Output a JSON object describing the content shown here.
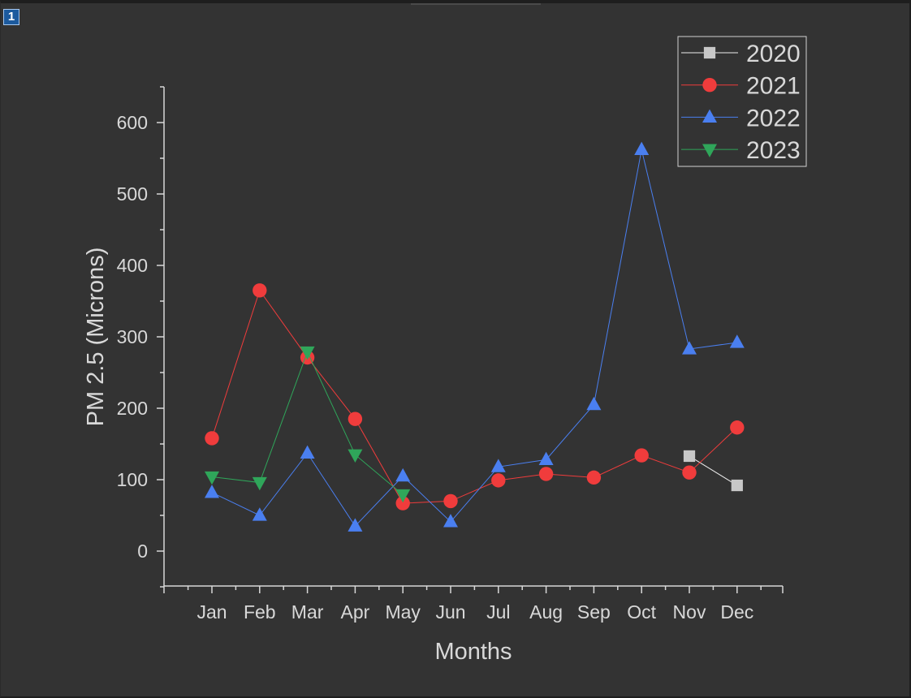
{
  "window": {
    "layer_badge": "1"
  },
  "colors": {
    "background": "#333333",
    "axis": "#d8d8d8",
    "text": "#d8d8d8",
    "legend_border": "#d0d0d0"
  },
  "chart_data": {
    "type": "line",
    "title": "",
    "xlabel": "Months",
    "ylabel": "PM 2.5 (Microns)",
    "categories": [
      "Jan",
      "Feb",
      "Mar",
      "Apr",
      "May",
      "Jun",
      "Jul",
      "Aug",
      "Sep",
      "Oct",
      "Nov",
      "Dec"
    ],
    "ylim": [
      -50,
      650
    ],
    "yticks": [
      0,
      100,
      200,
      300,
      400,
      500,
      600
    ],
    "ytick_labels": [
      "0",
      "100",
      "200",
      "300",
      "400",
      "500",
      "600"
    ],
    "grid": false,
    "legend_position": "top-right",
    "series": [
      {
        "name": "2020",
        "color": "#c8c8c8",
        "line_color": "#ececec",
        "marker": "square",
        "values": [
          null,
          null,
          null,
          null,
          null,
          null,
          null,
          null,
          null,
          null,
          133,
          92
        ]
      },
      {
        "name": "2021",
        "color": "#f03c3c",
        "line_color": "#f03c3c",
        "marker": "circle",
        "values": [
          158,
          365,
          271,
          185,
          67,
          70,
          99,
          108,
          103,
          134,
          110,
          173
        ]
      },
      {
        "name": "2022",
        "color": "#4a7ff0",
        "line_color": "#4a7ff0",
        "marker": "triangle-up",
        "values": [
          82,
          50,
          137,
          35,
          105,
          41,
          118,
          128,
          205,
          562,
          283,
          292
        ]
      },
      {
        "name": "2023",
        "color": "#2fa65a",
        "line_color": "#2fa65a",
        "marker": "triangle-down",
        "values": [
          104,
          96,
          279,
          135,
          79,
          null,
          null,
          null,
          null,
          null,
          null,
          null
        ]
      }
    ]
  }
}
